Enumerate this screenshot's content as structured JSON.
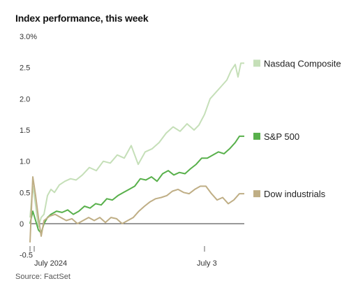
{
  "chart_data": {
    "type": "line",
    "title": "Index performance, this week",
    "source": "Source: FactSet",
    "xlabel": "",
    "ylabel": "",
    "ylim": [
      -0.3,
      3.0
    ],
    "y_ticks": [
      {
        "value": 3.0,
        "label": "3.0%"
      },
      {
        "value": 2.5,
        "label": "2.5"
      },
      {
        "value": 2.0,
        "label": "2.0"
      },
      {
        "value": 1.5,
        "label": "1.5"
      },
      {
        "value": 1.0,
        "label": "1.0"
      },
      {
        "value": 0.5,
        "label": "0.5"
      },
      {
        "value": 0,
        "label": "0"
      },
      {
        "value": -0.5,
        "label": "-0.5"
      }
    ],
    "x_ticks": [
      {
        "value": 0,
        "label": "July 2024"
      },
      {
        "value": 2.5,
        "label": "July 3"
      }
    ],
    "xlim": [
      0,
      3.07
    ],
    "grid": false,
    "legend_placement": "right, next to line ends",
    "series": [
      {
        "name": "Nasdaq Composite",
        "color": "#c5dfb8",
        "points": [
          [
            0,
            0.1
          ],
          [
            0.04,
            0.6
          ],
          [
            0.08,
            0.3
          ],
          [
            0.12,
            -0.05
          ],
          [
            0.16,
            0.1
          ],
          [
            0.2,
            0.15
          ],
          [
            0.25,
            0.45
          ],
          [
            0.3,
            0.55
          ],
          [
            0.35,
            0.5
          ],
          [
            0.42,
            0.62
          ],
          [
            0.5,
            0.68
          ],
          [
            0.58,
            0.72
          ],
          [
            0.66,
            0.7
          ],
          [
            0.75,
            0.78
          ],
          [
            0.85,
            0.9
          ],
          [
            0.95,
            0.85
          ],
          [
            1.05,
            1.0
          ],
          [
            1.15,
            0.97
          ],
          [
            1.25,
            1.1
          ],
          [
            1.35,
            1.05
          ],
          [
            1.45,
            1.25
          ],
          [
            1.55,
            0.95
          ],
          [
            1.65,
            1.15
          ],
          [
            1.75,
            1.2
          ],
          [
            1.85,
            1.3
          ],
          [
            1.95,
            1.45
          ],
          [
            2.05,
            1.55
          ],
          [
            2.15,
            1.48
          ],
          [
            2.25,
            1.6
          ],
          [
            2.35,
            1.5
          ],
          [
            2.42,
            1.58
          ],
          [
            2.5,
            1.75
          ],
          [
            2.58,
            2.0
          ],
          [
            2.66,
            2.1
          ],
          [
            2.74,
            2.2
          ],
          [
            2.82,
            2.3
          ],
          [
            2.88,
            2.45
          ],
          [
            2.94,
            2.55
          ],
          [
            2.98,
            2.35
          ],
          [
            3.02,
            2.57
          ],
          [
            3.07,
            2.57
          ]
        ]
      },
      {
        "name": "S&P 500",
        "color": "#58b04b",
        "points": [
          [
            0,
            0.0
          ],
          [
            0.04,
            0.2
          ],
          [
            0.08,
            0.05
          ],
          [
            0.12,
            -0.1
          ],
          [
            0.16,
            -0.15
          ],
          [
            0.2,
            0.0
          ],
          [
            0.25,
            0.1
          ],
          [
            0.3,
            0.15
          ],
          [
            0.38,
            0.2
          ],
          [
            0.46,
            0.18
          ],
          [
            0.54,
            0.22
          ],
          [
            0.62,
            0.15
          ],
          [
            0.7,
            0.2
          ],
          [
            0.78,
            0.28
          ],
          [
            0.86,
            0.25
          ],
          [
            0.94,
            0.32
          ],
          [
            1.02,
            0.3
          ],
          [
            1.1,
            0.4
          ],
          [
            1.18,
            0.38
          ],
          [
            1.26,
            0.45
          ],
          [
            1.34,
            0.5
          ],
          [
            1.42,
            0.55
          ],
          [
            1.5,
            0.6
          ],
          [
            1.58,
            0.72
          ],
          [
            1.66,
            0.7
          ],
          [
            1.74,
            0.75
          ],
          [
            1.82,
            0.68
          ],
          [
            1.9,
            0.8
          ],
          [
            1.98,
            0.85
          ],
          [
            2.06,
            0.78
          ],
          [
            2.14,
            0.82
          ],
          [
            2.22,
            0.8
          ],
          [
            2.3,
            0.88
          ],
          [
            2.38,
            0.95
          ],
          [
            2.46,
            1.05
          ],
          [
            2.54,
            1.05
          ],
          [
            2.62,
            1.1
          ],
          [
            2.7,
            1.15
          ],
          [
            2.78,
            1.12
          ],
          [
            2.86,
            1.2
          ],
          [
            2.94,
            1.3
          ],
          [
            3.0,
            1.4
          ],
          [
            3.07,
            1.4
          ]
        ]
      },
      {
        "name": "Dow industrials",
        "color": "#bfae85",
        "points": [
          [
            0,
            -0.3
          ],
          [
            0.04,
            0.75
          ],
          [
            0.08,
            0.45
          ],
          [
            0.12,
            0.1
          ],
          [
            0.16,
            -0.2
          ],
          [
            0.2,
            0.05
          ],
          [
            0.28,
            0.12
          ],
          [
            0.36,
            0.15
          ],
          [
            0.44,
            0.1
          ],
          [
            0.52,
            0.05
          ],
          [
            0.6,
            0.08
          ],
          [
            0.68,
            0.0
          ],
          [
            0.76,
            0.05
          ],
          [
            0.84,
            0.1
          ],
          [
            0.92,
            0.05
          ],
          [
            1.0,
            0.1
          ],
          [
            1.08,
            0.02
          ],
          [
            1.16,
            0.1
          ],
          [
            1.24,
            0.08
          ],
          [
            1.32,
            0.0
          ],
          [
            1.4,
            0.05
          ],
          [
            1.48,
            0.1
          ],
          [
            1.56,
            0.2
          ],
          [
            1.64,
            0.28
          ],
          [
            1.72,
            0.35
          ],
          [
            1.8,
            0.4
          ],
          [
            1.88,
            0.42
          ],
          [
            1.96,
            0.45
          ],
          [
            2.04,
            0.52
          ],
          [
            2.12,
            0.55
          ],
          [
            2.2,
            0.5
          ],
          [
            2.28,
            0.48
          ],
          [
            2.36,
            0.55
          ],
          [
            2.44,
            0.6
          ],
          [
            2.52,
            0.6
          ],
          [
            2.6,
            0.48
          ],
          [
            2.68,
            0.38
          ],
          [
            2.76,
            0.42
          ],
          [
            2.84,
            0.32
          ],
          [
            2.92,
            0.38
          ],
          [
            3.0,
            0.48
          ],
          [
            3.07,
            0.48
          ]
        ]
      }
    ]
  }
}
